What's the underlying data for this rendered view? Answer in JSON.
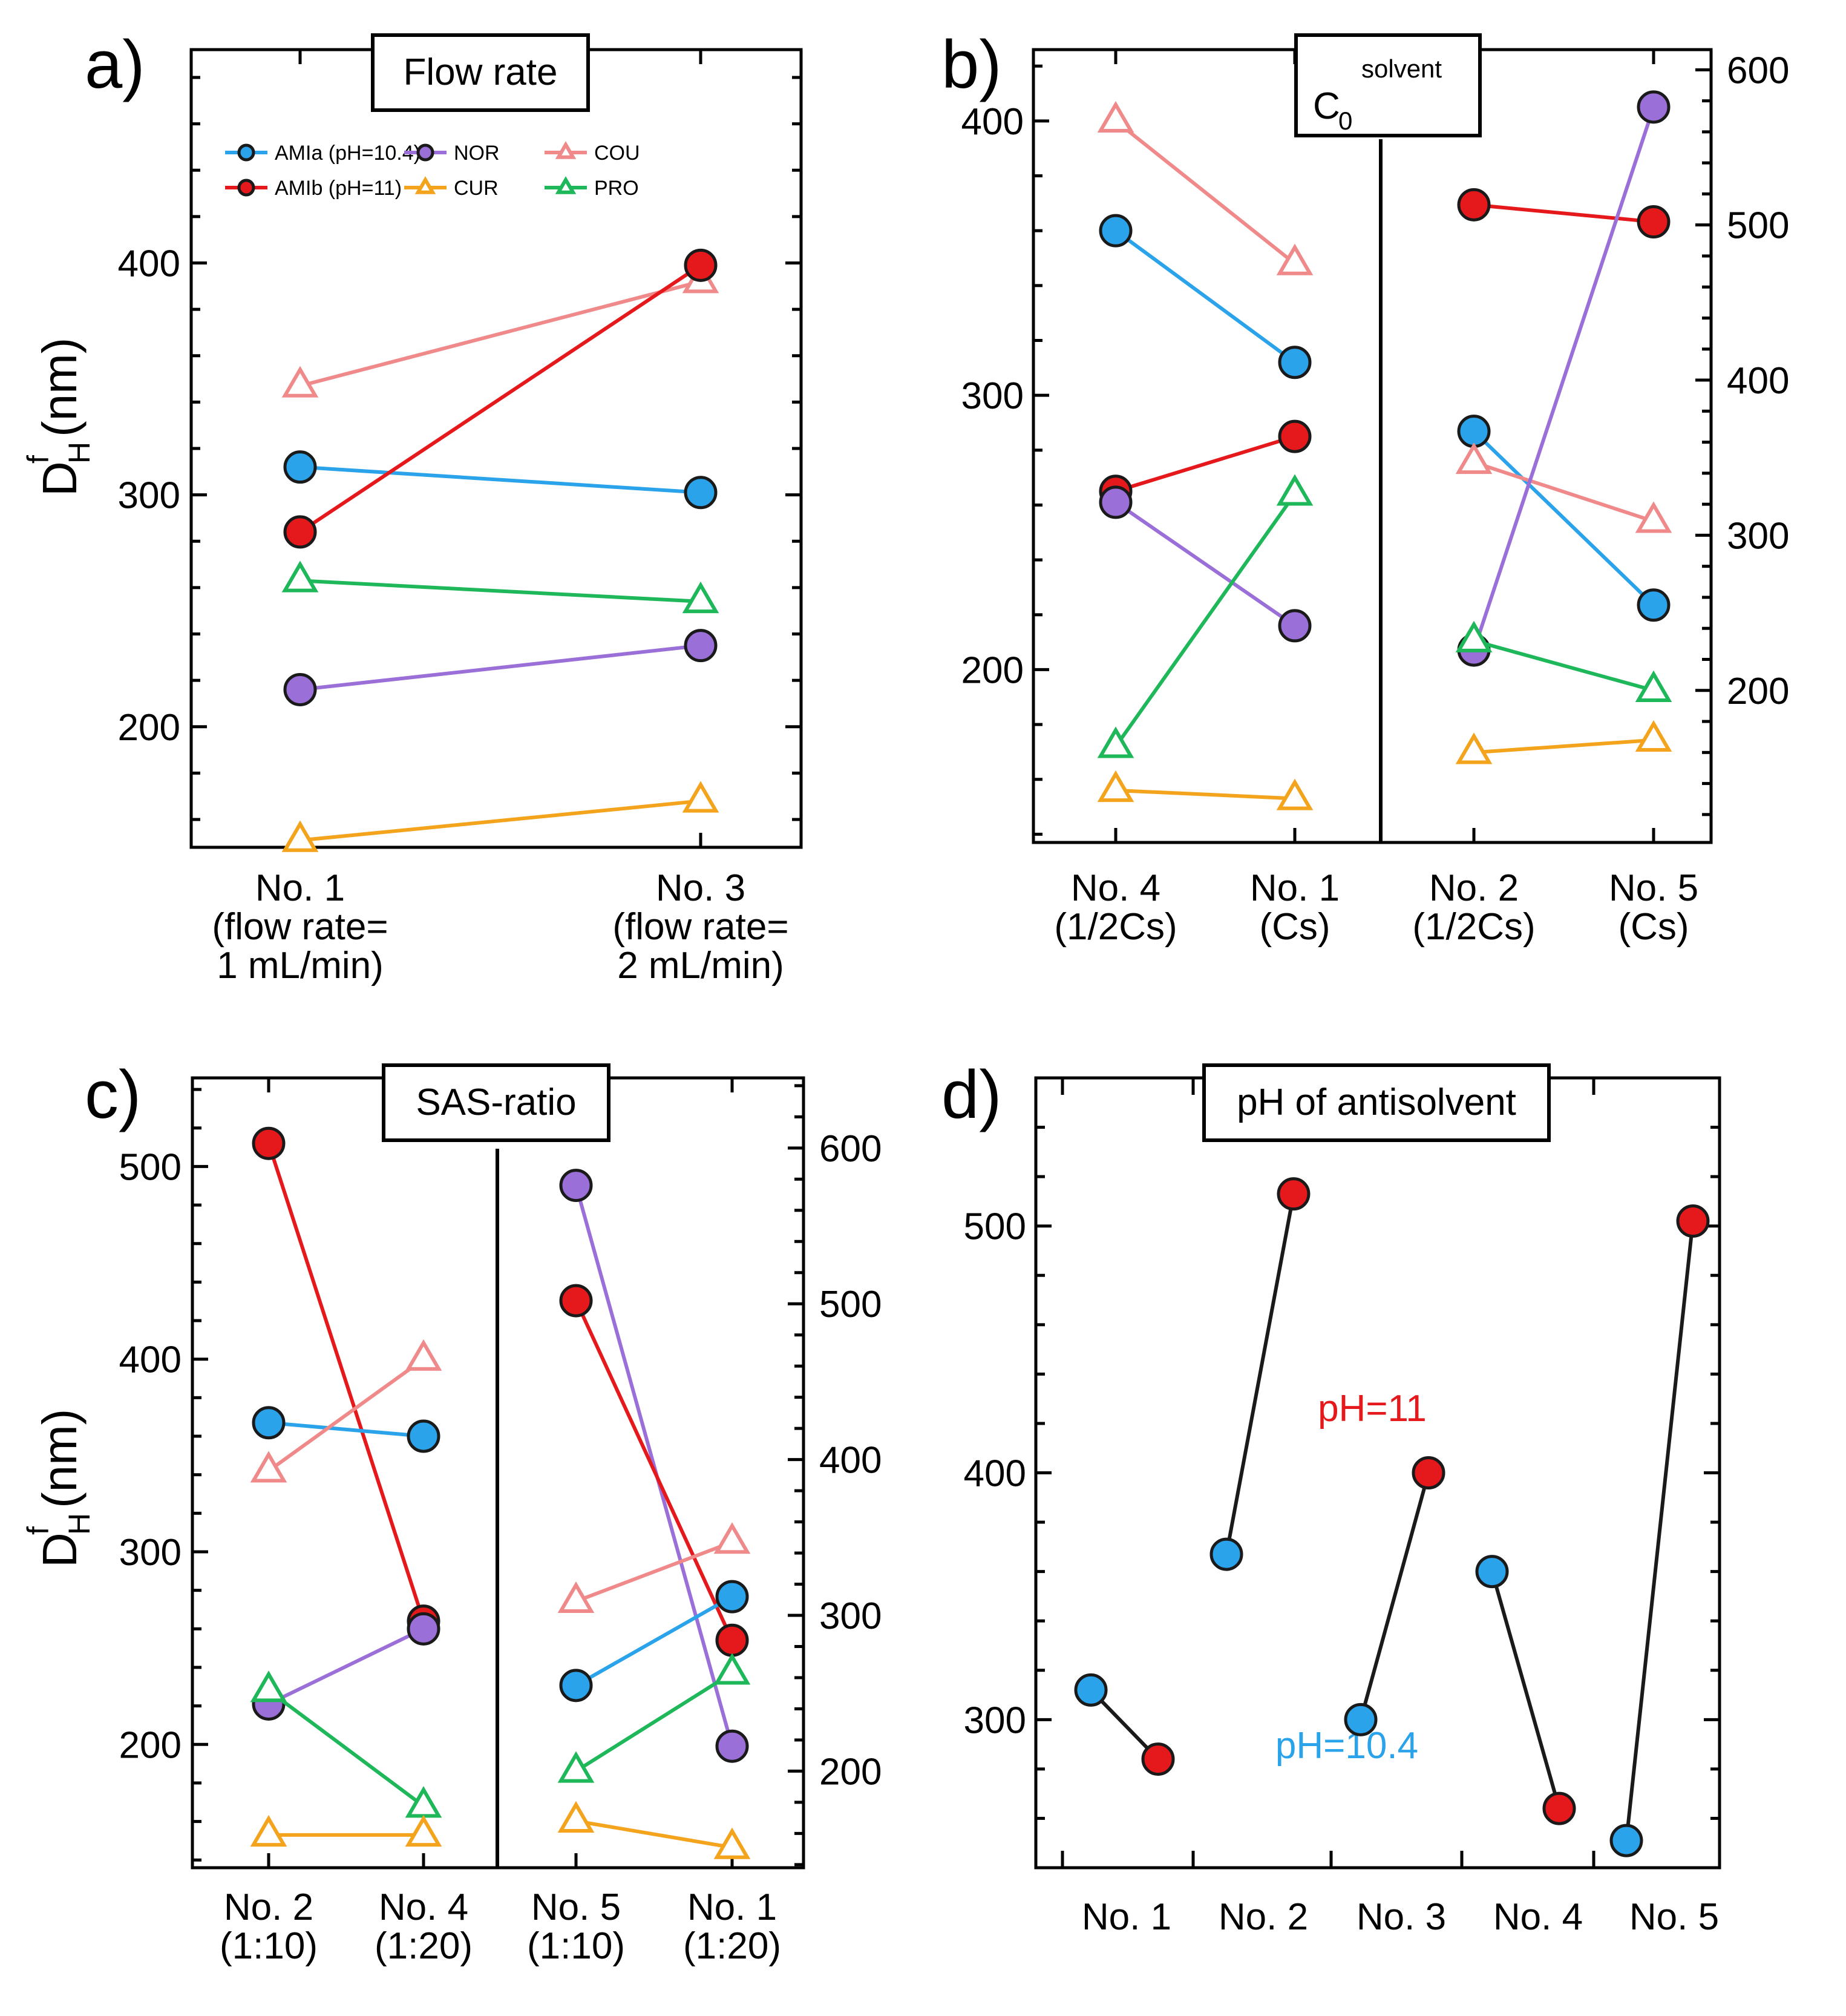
{
  "chart_data": [
    {
      "panel": "a)",
      "title": "Flow rate",
      "type": "line",
      "ylabel": "D^f_H (nm)",
      "ylim": [
        148,
        492
      ],
      "yticks": [
        200,
        300,
        400
      ],
      "categories": [
        [
          "No. 1",
          "(flow rate=",
          "1 mL/min)"
        ],
        [
          "No. 3",
          "(flow rate=",
          "2 mL/min)"
        ]
      ],
      "legend": [
        {
          "name": "AMIa (pH=10.4)",
          "key": "AMIa"
        },
        {
          "name": "NOR",
          "key": "NOR"
        },
        {
          "name": "COU",
          "key": "COU"
        },
        {
          "name": "AMIb (pH=11)",
          "key": "AMIb"
        },
        {
          "name": "CUR",
          "key": "CUR"
        },
        {
          "name": "PRO",
          "key": "PRO"
        }
      ],
      "series": [
        {
          "name": "COU",
          "values": [
            347,
            392
          ]
        },
        {
          "name": "AMIa",
          "values": [
            312,
            301
          ]
        },
        {
          "name": "AMIb",
          "values": [
            284,
            399
          ]
        },
        {
          "name": "PRO",
          "values": [
            263,
            254
          ]
        },
        {
          "name": "NOR",
          "values": [
            216,
            235
          ]
        },
        {
          "name": "CUR",
          "values": [
            151,
            168
          ]
        }
      ]
    },
    {
      "panel": "b)",
      "title": "C0 solvent",
      "title_main": "C",
      "title_sub": "0",
      "title_sup": "solvent",
      "type": "line",
      "ylim_left": [
        137,
        426
      ],
      "yticks_left": [
        200,
        300,
        400
      ],
      "ylim_right": [
        102,
        613
      ],
      "yticks_right": [
        200,
        300,
        400,
        500,
        600
      ],
      "categories": [
        [
          "No. 4",
          "(1/2Cs)"
        ],
        [
          "No. 1",
          "(Cs)"
        ],
        [
          "No. 2",
          "(1/2Cs)"
        ],
        [
          "No. 5",
          "(Cs)"
        ]
      ],
      "left_series": [
        {
          "name": "COU",
          "values": [
            400,
            348
          ]
        },
        {
          "name": "AMIa",
          "values": [
            360,
            312
          ]
        },
        {
          "name": "AMIb",
          "values": [
            265,
            285
          ]
        },
        {
          "name": "NOR",
          "values": [
            261,
            216
          ]
        },
        {
          "name": "PRO",
          "values": [
            172,
            264
          ]
        },
        {
          "name": "CUR",
          "values": [
            156,
            153
          ]
        }
      ],
      "right_series": [
        {
          "name": "AMIb",
          "values": [
            513,
            502
          ]
        },
        {
          "name": "AMIa",
          "values": [
            367,
            255
          ]
        },
        {
          "name": "COU",
          "values": [
            347,
            309
          ]
        },
        {
          "name": "NOR",
          "values": [
            226,
            576
          ]
        },
        {
          "name": "PRO",
          "values": [
            232,
            200
          ]
        },
        {
          "name": "CUR",
          "values": [
            160,
            168
          ]
        }
      ]
    },
    {
      "panel": "c)",
      "title": "SAS-ratio",
      "type": "line",
      "ylabel": "D^f_H (nm)",
      "ylim_left": [
        136,
        546
      ],
      "yticks_left": [
        200,
        300,
        400,
        500
      ],
      "ylim_right": [
        138,
        645
      ],
      "yticks_right": [
        200,
        300,
        400,
        500,
        600
      ],
      "categories": [
        [
          "No. 2",
          "(1:10)"
        ],
        [
          "No. 4",
          "(1:20)"
        ],
        [
          "No. 5",
          "(1:10)"
        ],
        [
          "No. 1",
          "(1:20)"
        ]
      ],
      "left_series": [
        {
          "name": "AMIb",
          "values": [
            512,
            264
          ]
        },
        {
          "name": "AMIa",
          "values": [
            367,
            360
          ]
        },
        {
          "name": "COU",
          "values": [
            342,
            400
          ]
        },
        {
          "name": "NOR",
          "values": [
            221,
            260
          ]
        },
        {
          "name": "PRO",
          "values": [
            228,
            168
          ]
        },
        {
          "name": "CUR",
          "values": [
            153,
            153
          ]
        }
      ],
      "right_series": [
        {
          "name": "NOR",
          "values": [
            576,
            216
          ]
        },
        {
          "name": "AMIb",
          "values": [
            502,
            284
          ]
        },
        {
          "name": "COU",
          "values": [
            309,
            347
          ]
        },
        {
          "name": "AMIa",
          "values": [
            255,
            312
          ]
        },
        {
          "name": "PRO",
          "values": [
            200,
            263
          ]
        },
        {
          "name": "CUR",
          "values": [
            168,
            151
          ]
        }
      ]
    },
    {
      "panel": "d)",
      "title": "pH of antisolvent",
      "type": "line",
      "ylim": [
        240,
        560
      ],
      "yticks": [
        300,
        400,
        500
      ],
      "categories": [
        "No. 1",
        "No. 2",
        "No. 3",
        "No. 4",
        "No. 5"
      ],
      "annotations": [
        {
          "text": "pH=11",
          "color": "#e5191c"
        },
        {
          "text": "pH=10.4",
          "color": "#2aa3ea"
        }
      ],
      "pairs": [
        {
          "category": "No. 1",
          "pH_10_4": 312,
          "pH_11": 284
        },
        {
          "category": "No. 2",
          "pH_10_4": 367,
          "pH_11": 513
        },
        {
          "category": "No. 3",
          "pH_10_4": 300,
          "pH_11": 400
        },
        {
          "category": "No. 4",
          "pH_10_4": 360,
          "pH_11": 264
        },
        {
          "category": "No. 5",
          "pH_10_4": 251,
          "pH_11": 502
        }
      ]
    }
  ],
  "styles": {
    "AMIa": {
      "color": "#2aa3ea",
      "marker": "circle"
    },
    "AMIb": {
      "color": "#e5191c",
      "marker": "circle"
    },
    "NOR": {
      "color": "#9b6fd8",
      "marker": "circle"
    },
    "COU": {
      "color": "#f08a8a",
      "marker": "triangle"
    },
    "CUR": {
      "color": "#f4a31c",
      "marker": "triangle"
    },
    "PRO": {
      "color": "#1eb75a",
      "marker": "triangle"
    },
    "pair_line": "#1a1a1a"
  }
}
